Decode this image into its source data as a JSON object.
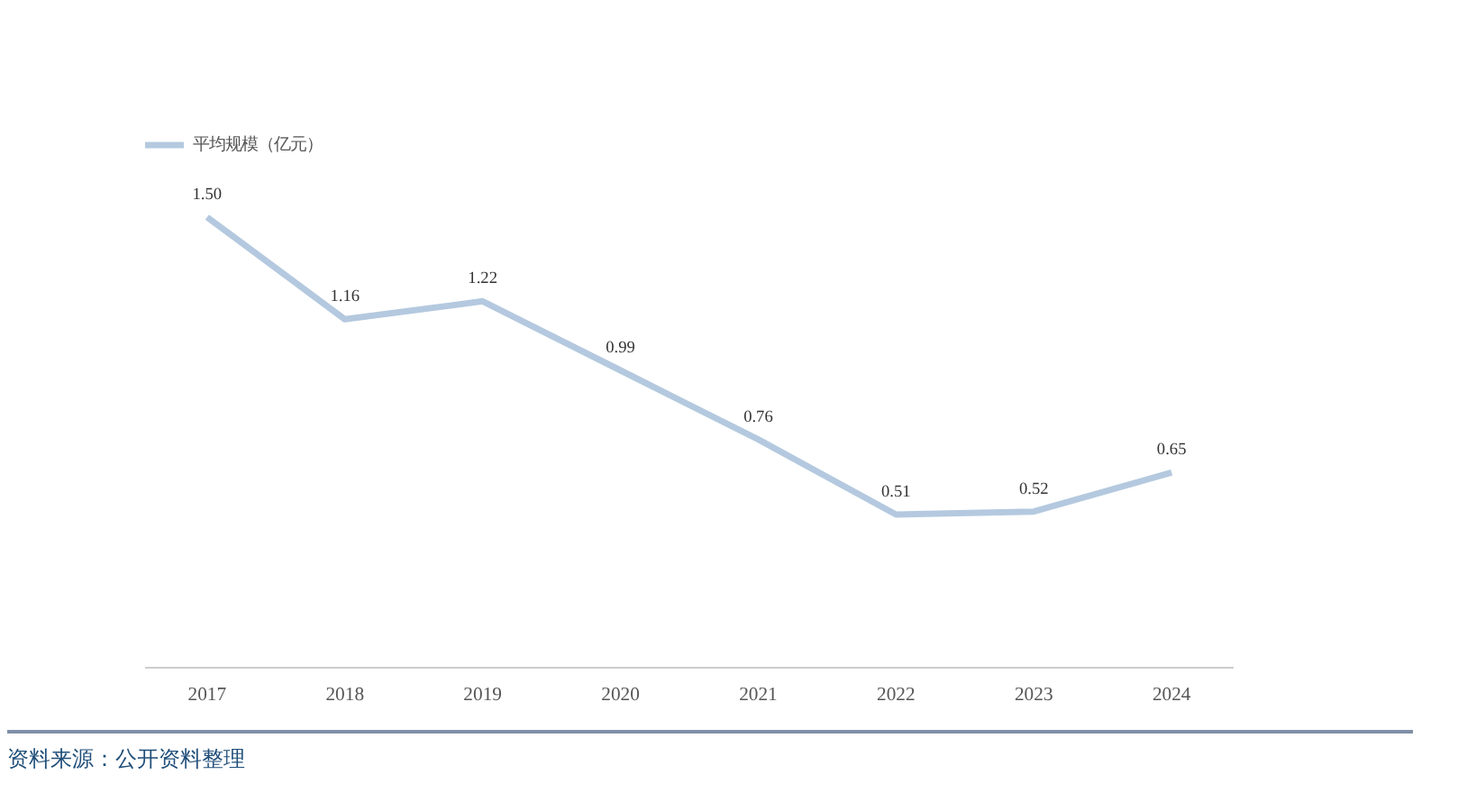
{
  "chart_data": {
    "type": "line",
    "categories": [
      "2017",
      "2018",
      "2019",
      "2020",
      "2021",
      "2022",
      "2023",
      "2024"
    ],
    "series": [
      {
        "name": "平均规模（亿元）",
        "color": "#b4c9df",
        "values": [
          1.5,
          1.16,
          1.22,
          0.99,
          0.76,
          0.51,
          0.52,
          0.65
        ],
        "value_labels": [
          "1.50",
          "1.16",
          "1.22",
          "0.99",
          "0.76",
          "0.51",
          "0.52",
          "0.65"
        ]
      }
    ],
    "tick_labels": "x",
    "grid": false,
    "legend": "top left",
    "marker": "none",
    "line_style": "solid",
    "annotations": [
      "资料来源：公开资料整理"
    ]
  }
}
